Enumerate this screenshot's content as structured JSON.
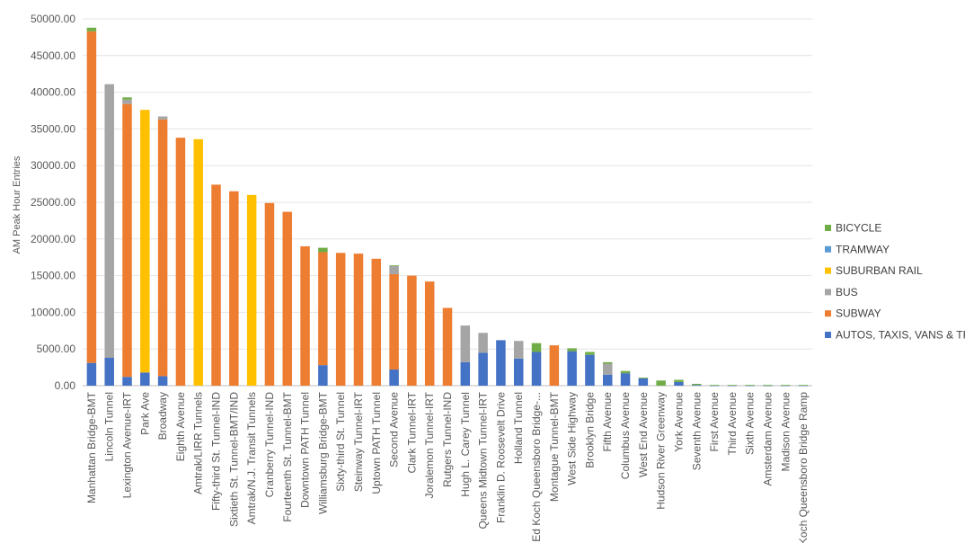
{
  "chart_data": {
    "type": "bar",
    "stacked": true,
    "title": "",
    "xlabel": "",
    "ylabel": "AM Peak Hour Entries",
    "ylim": [
      0,
      50000
    ],
    "yticks": [
      "0.00",
      "5000.00",
      "10000.00",
      "15000.00",
      "20000.00",
      "25000.00",
      "30000.00",
      "35000.00",
      "40000.00",
      "45000.00",
      "50000.00"
    ],
    "grid": true,
    "legend_position": "right",
    "categories": [
      "Manhattan Bridge-BMT",
      "Lincoln Tunnel",
      "Lexington Avenue-IRT",
      "Park Ave",
      "Broadway",
      "Eighth Avenue",
      "Amtrak/LIRR Tunnels",
      "Fifty-third St. Tunnel-IND",
      "Sixtieth St. Tunnel-BMT/IND",
      "Amtrak/N.J. Transit Tunnels",
      "Cranberry Tunnel-IND",
      "Fourteenth St. Tunnel-BMT",
      "Downtown PATH Tunnel",
      "Williamsburg Bridge-BMT",
      "Sixty-third St. Tunnel",
      "Steinway Tunnel-IRT",
      "Uptown PATH Tunnel",
      "Second Avenue",
      "Clark Tunnel-IRT",
      "Joralemon Tunnel-IRT",
      "Rutgers Tunnel-IND",
      "Hugh L. Carey Tunnel",
      "Queens Midtown Tunnel-IRT",
      "Franklin D. Roosevelt Drive",
      "Holland Tunnel",
      "Ed Koch Queensboro Bridge-...",
      "Montague Tunnel-BMT",
      "West Side Highway",
      "Brooklyn Bridge",
      "Fifth Avenue",
      "Columbus Avenue",
      "West End Avenue",
      "Hudson River Greenway",
      "York Avenue",
      "Seventh Avenue",
      "First Avenue",
      "Third Avenue",
      "Sixth Avenue",
      "Amsterdam Avenue",
      "Madison Avenue",
      "Ed Koch Queensboro Bridge Ramp"
    ],
    "series": [
      {
        "name": "AUTOS, TAXIS, VANS & TRUCKS",
        "color": "#4472c4",
        "values": [
          3100,
          3800,
          1200,
          1800,
          1300,
          0,
          0,
          0,
          0,
          0,
          0,
          0,
          0,
          2800,
          0,
          0,
          0,
          2200,
          0,
          0,
          0,
          3200,
          4500,
          6200,
          3700,
          4600,
          0,
          4700,
          4200,
          1500,
          1700,
          1000,
          0,
          500,
          100,
          50,
          50,
          50,
          50,
          50,
          50
        ]
      },
      {
        "name": "SUBWAY",
        "color": "#ed7d31",
        "values": [
          45200,
          0,
          37200,
          0,
          35000,
          33800,
          0,
          27400,
          26500,
          0,
          24900,
          23700,
          19000,
          15400,
          18100,
          18000,
          17300,
          13000,
          15000,
          14200,
          10600,
          0,
          0,
          0,
          0,
          0,
          5500,
          0,
          0,
          0,
          0,
          0,
          0,
          0,
          0,
          0,
          0,
          0,
          0,
          0,
          0
        ]
      },
      {
        "name": "BUS",
        "color": "#a5a5a5",
        "values": [
          0,
          37300,
          600,
          0,
          400,
          0,
          0,
          0,
          0,
          0,
          0,
          0,
          0,
          0,
          0,
          0,
          0,
          1100,
          0,
          0,
          0,
          5000,
          2700,
          0,
          2400,
          0,
          0,
          0,
          0,
          1500,
          0,
          0,
          0,
          0,
          0,
          0,
          0,
          0,
          0,
          0,
          0
        ]
      },
      {
        "name": "SUBURBAN RAIL",
        "color": "#ffc000",
        "values": [
          0,
          0,
          0,
          35800,
          0,
          0,
          33600,
          0,
          0,
          26000,
          0,
          0,
          0,
          0,
          0,
          0,
          0,
          0,
          0,
          0,
          0,
          0,
          0,
          0,
          0,
          0,
          0,
          0,
          0,
          0,
          0,
          0,
          0,
          0,
          0,
          0,
          0,
          0,
          0,
          0,
          0
        ]
      },
      {
        "name": "TRAMWAY",
        "color": "#5b9bd5",
        "values": [
          0,
          0,
          0,
          0,
          0,
          0,
          0,
          0,
          0,
          0,
          0,
          0,
          0,
          0,
          0,
          0,
          0,
          0,
          0,
          0,
          0,
          0,
          0,
          0,
          0,
          0,
          0,
          0,
          0,
          0,
          0,
          0,
          0,
          0,
          0,
          0,
          0,
          0,
          0,
          0,
          0
        ]
      },
      {
        "name": "BICYCLE",
        "color": "#70ad47",
        "values": [
          500,
          0,
          300,
          0,
          0,
          0,
          0,
          0,
          0,
          0,
          0,
          0,
          0,
          600,
          0,
          0,
          0,
          100,
          0,
          0,
          0,
          0,
          0,
          0,
          0,
          1200,
          0,
          400,
          400,
          200,
          300,
          100,
          700,
          300,
          150,
          50,
          50,
          50,
          50,
          50,
          50
        ]
      }
    ]
  }
}
